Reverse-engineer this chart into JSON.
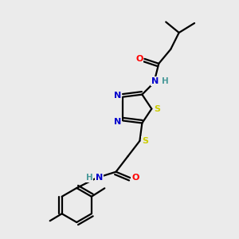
{
  "bg_color": "#ebebeb",
  "atom_colors": {
    "C": "#000000",
    "N": "#0000cc",
    "O": "#ff0000",
    "S": "#cccc00",
    "H": "#4a9a9a"
  },
  "bond_color": "#000000",
  "bond_width": 1.6,
  "figsize": [
    3.0,
    3.0
  ],
  "dpi": 100
}
